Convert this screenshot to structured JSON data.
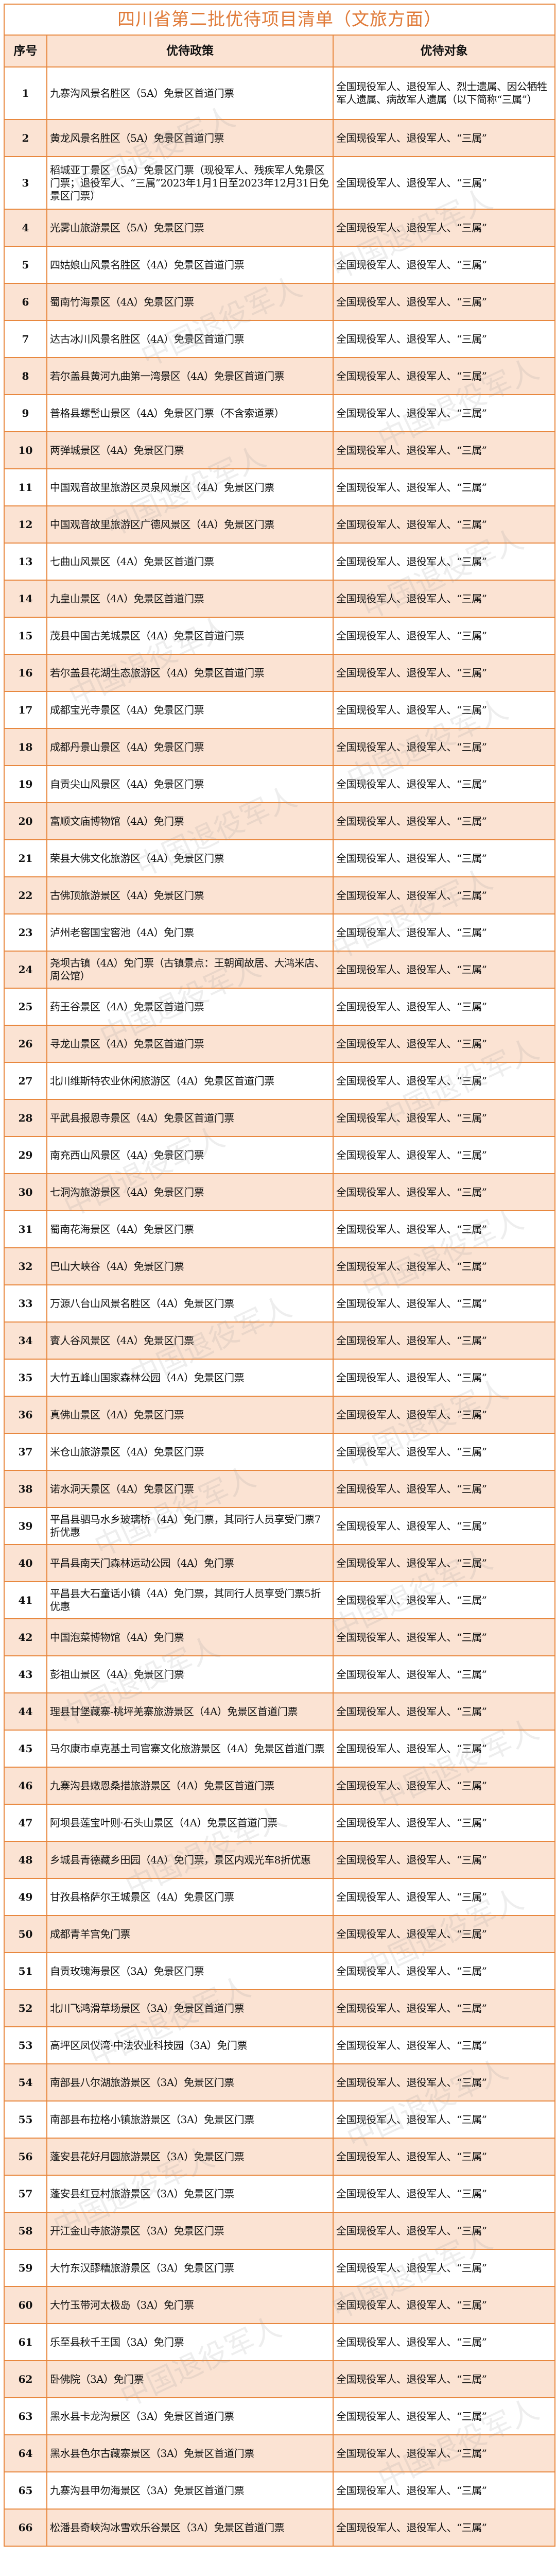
{
  "title": "四川省第二批优待项目清单（文旅方面）",
  "headers": {
    "no": "序号",
    "policy": "优待政策",
    "target": "优待对象"
  },
  "watermark": "中国退役军人",
  "colors": {
    "border": "#e8883f",
    "title": "#e07b39",
    "stripe": "#fbe3d3"
  },
  "rows": [
    {
      "no": "1",
      "policy": "九寨沟风景名胜区（5A）免景区首道门票",
      "target": "全国现役军人、退役军人、烈士遗属、因公牺牲军人遗属、病故军人遗属（以下简称“三属”）"
    },
    {
      "no": "2",
      "policy": "黄龙风景名胜区（5A）免景区首道门票",
      "target": "全国现役军人、退役军人、“三属”"
    },
    {
      "no": "3",
      "policy": "稻城亚丁景区（5A）免景区门票（现役军人、残疾军人免景区门票；退役军人、“三属”2023年1月1日至2023年12月31日免景区门票）",
      "target": "全国现役军人、退役军人、“三属”"
    },
    {
      "no": "4",
      "policy": "光雾山旅游景区（5A）免景区门票",
      "target": "全国现役军人、退役军人、“三属”"
    },
    {
      "no": "5",
      "policy": "四姑娘山风景名胜区（4A）免景区首道门票",
      "target": "全国现役军人、退役军人、“三属”"
    },
    {
      "no": "6",
      "policy": "蜀南竹海景区（4A）免景区门票",
      "target": "全国现役军人、退役军人、“三属”"
    },
    {
      "no": "7",
      "policy": "达古冰川风景名胜区（4A）免景区首道门票",
      "target": "全国现役军人、退役军人、“三属”"
    },
    {
      "no": "8",
      "policy": "若尔盖县黄河九曲第一湾景区（4A）免景区首道门票",
      "target": "全国现役军人、退役军人、“三属”"
    },
    {
      "no": "9",
      "policy": "普格县螺髻山景区（4A）免景区门票（不含索道票）",
      "target": "全国现役军人、退役军人、“三属”"
    },
    {
      "no": "10",
      "policy": "两弹城景区（4A）免景区门票",
      "target": "全国现役军人、退役军人、“三属”"
    },
    {
      "no": "11",
      "policy": "中国观音故里旅游区灵泉风景区（4A）免景区门票",
      "target": "全国现役军人、退役军人、“三属”"
    },
    {
      "no": "12",
      "policy": "中国观音故里旅游区广德风景区（4A）免景区门票",
      "target": "全国现役军人、退役军人、“三属”"
    },
    {
      "no": "13",
      "policy": "七曲山风景区（4A）免景区首道门票",
      "target": "全国现役军人、退役军人、“三属”"
    },
    {
      "no": "14",
      "policy": "九皇山景区（4A）免景区首道门票",
      "target": "全国现役军人、退役军人、“三属”"
    },
    {
      "no": "15",
      "policy": "茂县中国古羌城景区（4A）免景区首道门票",
      "target": "全国现役军人、退役军人、“三属”"
    },
    {
      "no": "16",
      "policy": "若尔盖县花湖生态旅游区（4A）免景区首道门票",
      "target": "全国现役军人、退役军人、“三属”"
    },
    {
      "no": "17",
      "policy": "成都宝光寺景区（4A）免景区门票",
      "target": "全国现役军人、退役军人、“三属”"
    },
    {
      "no": "18",
      "policy": "成都丹景山景区（4A）免景区门票",
      "target": "全国现役军人、退役军人、“三属”"
    },
    {
      "no": "19",
      "policy": "自贡尖山风景区（4A）免景区门票",
      "target": "全国现役军人、退役军人、“三属”"
    },
    {
      "no": "20",
      "policy": "富顺文庙博物馆（4A）免门票",
      "target": "全国现役军人、退役军人、“三属”"
    },
    {
      "no": "21",
      "policy": "荣县大佛文化旅游区（4A）免景区门票",
      "target": "全国现役军人、退役军人、“三属”"
    },
    {
      "no": "22",
      "policy": "古佛顶旅游景区（4A）免景区门票",
      "target": "全国现役军人、退役军人、“三属”"
    },
    {
      "no": "23",
      "policy": "泸州老窖国宝窖池（4A）免门票",
      "target": "全国现役军人、退役军人、“三属”"
    },
    {
      "no": "24",
      "policy": "尧坝古镇（4A）免门票（古镇景点：王朝闻故居、大鸿米店、周公馆）",
      "target": "全国现役军人、退役军人、“三属”"
    },
    {
      "no": "25",
      "policy": "药王谷景区（4A）免景区首道门票",
      "target": "全国现役军人、退役军人、“三属”"
    },
    {
      "no": "26",
      "policy": "寻龙山景区（4A）免景区首道门票",
      "target": "全国现役军人、退役军人、“三属”"
    },
    {
      "no": "27",
      "policy": "北川维斯特农业休闲旅游区（4A）免景区首道门票",
      "target": "全国现役军人、退役军人、“三属”"
    },
    {
      "no": "28",
      "policy": "平武县报恩寺景区（4A）免景区首道门票",
      "target": "全国现役军人、退役军人、“三属”"
    },
    {
      "no": "29",
      "policy": "南充西山风景区（4A）免景区门票",
      "target": "全国现役军人、退役军人、“三属”"
    },
    {
      "no": "30",
      "policy": "七洞沟旅游景区（4A）免景区门票",
      "target": "全国现役军人、退役军人、“三属”"
    },
    {
      "no": "31",
      "policy": "蜀南花海景区（4A）免景区门票",
      "target": "全国现役军人、退役军人、“三属”"
    },
    {
      "no": "32",
      "policy": "巴山大峡谷（4A）免景区门票",
      "target": "全国现役军人、退役军人、“三属”"
    },
    {
      "no": "33",
      "policy": "万源八台山风景名胜区（4A）免景区门票",
      "target": "全国现役军人、退役军人、“三属”"
    },
    {
      "no": "34",
      "policy": "賨人谷风景区（4A）免景区门票",
      "target": "全国现役军人、退役军人、“三属”"
    },
    {
      "no": "35",
      "policy": "大竹五峰山国家森林公园（4A）免景区门票",
      "target": "全国现役军人、退役军人、“三属”"
    },
    {
      "no": "36",
      "policy": "真佛山景区（4A）免景区门票",
      "target": "全国现役军人、退役军人、“三属”"
    },
    {
      "no": "37",
      "policy": "米仓山旅游景区（4A）免景区门票",
      "target": "全国现役军人、退役军人、“三属”"
    },
    {
      "no": "38",
      "policy": "诺水洞天景区（4A）免景区门票",
      "target": "全国现役军人、退役军人、“三属”"
    },
    {
      "no": "39",
      "policy": "平昌县驷马水乡玻璃桥（4A）免门票，其同行人员享受门票7折优惠",
      "target": "全国现役军人、退役军人、“三属”"
    },
    {
      "no": "40",
      "policy": "平昌县南天门森林运动公园（4A）免门票",
      "target": "全国现役军人、退役军人、“三属”"
    },
    {
      "no": "41",
      "policy": "平昌县大石童话小镇（4A）免门票，其同行人员享受门票5折优惠",
      "target": "全国现役军人、退役军人、“三属”"
    },
    {
      "no": "42",
      "policy": "中国泡菜博物馆（4A）免门票",
      "target": "全国现役军人、退役军人、“三属”"
    },
    {
      "no": "43",
      "policy": "彭祖山景区（4A）免景区门票",
      "target": "全国现役军人、退役军人、“三属”"
    },
    {
      "no": "44",
      "policy": "理县甘堡藏寨-桃坪羌寨旅游景区（4A）免景区首道门票",
      "target": "全国现役军人、退役军人、“三属”"
    },
    {
      "no": "45",
      "policy": "马尔康市卓克基土司官寨文化旅游景区（4A）免景区首道门票",
      "target": "全国现役军人、退役军人、“三属”"
    },
    {
      "no": "46",
      "policy": "九寨沟县嫩恩桑措旅游景区（4A）免景区首道门票",
      "target": "全国现役军人、退役军人、“三属”"
    },
    {
      "no": "47",
      "policy": "阿坝县莲宝叶则·石头山景区（4A）免景区首道门票",
      "target": "全国现役军人、退役军人、“三属”"
    },
    {
      "no": "48",
      "policy": "乡城县青德藏乡田园（4A）免门票，景区内观光车8折优惠",
      "target": "全国现役军人、退役军人、“三属”"
    },
    {
      "no": "49",
      "policy": "甘孜县格萨尔王城景区（4A）免景区门票",
      "target": "全国现役军人、退役军人、“三属”"
    },
    {
      "no": "50",
      "policy": "成都青羊宫免门票",
      "target": "全国现役军人、退役军人、“三属”"
    },
    {
      "no": "51",
      "policy": "自贡玫瑰海景区（3A）免景区门票",
      "target": "全国现役军人、退役军人、“三属”"
    },
    {
      "no": "52",
      "policy": "北川飞鸿滑草场景区（3A）免景区首道门票",
      "target": "全国现役军人、退役军人、“三属”"
    },
    {
      "no": "53",
      "policy": "高坪区凤仪湾·中法农业科技园（3A）免门票",
      "target": "全国现役军人、退役军人、“三属”"
    },
    {
      "no": "54",
      "policy": "南部县八尔湖旅游景区（3A）免景区门票",
      "target": "全国现役军人、退役军人、“三属”"
    },
    {
      "no": "55",
      "policy": "南部县布拉格小镇旅游景区（3A）免景区门票",
      "target": "全国现役军人、退役军人、“三属”"
    },
    {
      "no": "56",
      "policy": "蓬安县花好月圆旅游景区（3A）免景区门票",
      "target": "全国现役军人、退役军人、“三属”"
    },
    {
      "no": "57",
      "policy": "蓬安县红豆村旅游景区（3A）免景区门票",
      "target": "全国现役军人、退役军人、“三属”"
    },
    {
      "no": "58",
      "policy": "开江金山寺旅游景区（3A）免景区门票",
      "target": "全国现役军人、退役军人、“三属”"
    },
    {
      "no": "59",
      "policy": "大竹东汉醪糟旅游景区（3A）免景区门票",
      "target": "全国现役军人、退役军人、“三属”"
    },
    {
      "no": "60",
      "policy": "大竹玉带河太极岛（3A）免门票",
      "target": "全国现役军人、退役军人、“三属”"
    },
    {
      "no": "61",
      "policy": "乐至县秋千王国（3A）免门票",
      "target": "全国现役军人、退役军人、“三属”"
    },
    {
      "no": "62",
      "policy": "卧佛院（3A）免门票",
      "target": "全国现役军人、退役军人、“三属”"
    },
    {
      "no": "63",
      "policy": "黑水县卡龙沟景区（3A）免景区首道门票",
      "target": "全国现役军人、退役军人、“三属”"
    },
    {
      "no": "64",
      "policy": "黑水县色尔古藏寨景区（3A）免景区首道门票",
      "target": "全国现役军人、退役军人、“三属”"
    },
    {
      "no": "65",
      "policy": "九寨沟县甲勿海景区（3A）免景区首道门票",
      "target": "全国现役军人、退役军人、“三属”"
    },
    {
      "no": "66",
      "policy": "松潘县奇峡沟冰雪欢乐谷景区（3A）免景区首道门票",
      "target": "全国现役军人、退役军人、“三属”"
    }
  ]
}
